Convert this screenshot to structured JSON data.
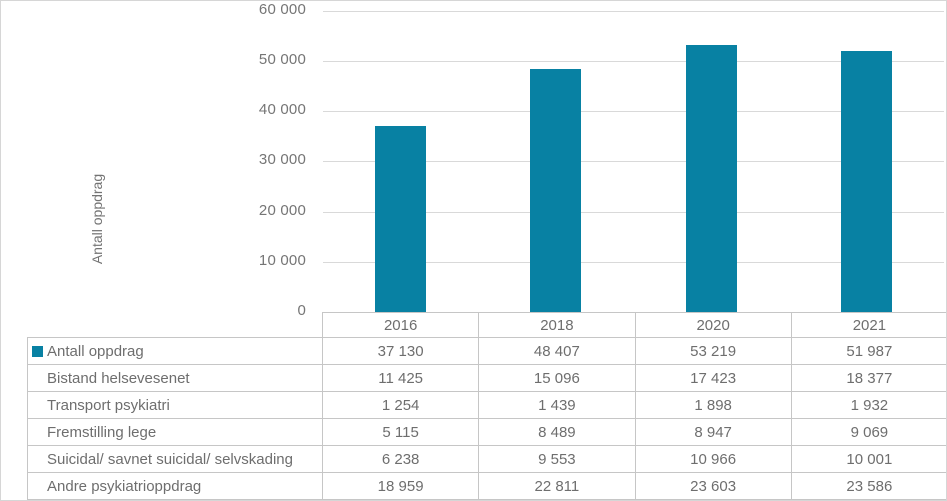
{
  "chart_data": {
    "type": "bar",
    "title": "",
    "xlabel": "",
    "ylabel": "Antall oppdrag",
    "categories": [
      "2016",
      "2018",
      "2020",
      "2021"
    ],
    "series": [
      {
        "name": "Antall oppdrag",
        "values": [
          37130,
          48407,
          53219,
          51987
        ]
      }
    ],
    "ylim": [
      0,
      60000
    ],
    "grid": true,
    "legend_position": "table-row-marker",
    "yticks": [
      {
        "value": 0,
        "label": "0"
      },
      {
        "value": 10000,
        "label": "10 000"
      },
      {
        "value": 20000,
        "label": "20 000"
      },
      {
        "value": 30000,
        "label": "30 000"
      },
      {
        "value": 40000,
        "label": "40 000"
      },
      {
        "value": 50000,
        "label": "50 000"
      },
      {
        "value": 60000,
        "label": "60 000"
      }
    ]
  },
  "colors": {
    "bar": "#0881A3",
    "gridline": "#d9d9d9",
    "table_border": "#c6c6c6",
    "text_gray": "#6e6e6e"
  },
  "table": {
    "year_headers": [
      "2016",
      "2018",
      "2020",
      "2021"
    ],
    "rows": [
      {
        "label": "Antall oppdrag",
        "values": [
          "37 130",
          "48 407",
          "53 219",
          "51 987"
        ]
      },
      {
        "label": "Bistand helsevesenet",
        "values": [
          "11 425",
          "15 096",
          "17 423",
          "18 377"
        ]
      },
      {
        "label": "Transport psykiatri",
        "values": [
          "1 254",
          "1 439",
          "1 898",
          "1 932"
        ]
      },
      {
        "label": "Fremstilling lege",
        "values": [
          "5 115",
          "8 489",
          "8 947",
          "9 069"
        ]
      },
      {
        "label": "Suicidal/ savnet suicidal/ selvskading",
        "values": [
          "6 238",
          "9 553",
          "10 966",
          "10 001"
        ]
      },
      {
        "label": "Andre psykiatrioppdrag",
        "values": [
          "18 959",
          "22 811",
          "23 603",
          "23 586"
        ]
      }
    ]
  }
}
